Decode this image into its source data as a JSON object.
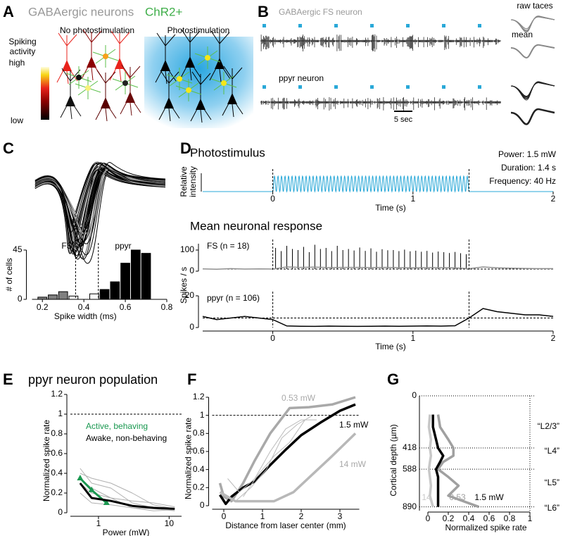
{
  "panel_labels": [
    "A",
    "B",
    "C",
    "D",
    "E",
    "F",
    "G"
  ],
  "panel_a": {
    "title": "GABAergic neurons",
    "title_accent": "ChR2+",
    "colorbar_title": [
      "Spiking",
      "activity"
    ],
    "colorbar_high": "high",
    "colorbar_low": "low",
    "left_label": "No photostimulation",
    "right_label": "Photostimulation"
  },
  "panel_b": {
    "fs_label": "GABAergic FS neuron",
    "ppyr_label": "ppyr neuron",
    "scale_label": "5 sec",
    "raw_label": "raw taces",
    "mean_label": "mean"
  },
  "chart_data": [
    {
      "type": "histogram",
      "xlabel": "Spike width (ms)",
      "ylabel": "# of cells",
      "bins": [
        0.175,
        0.225,
        0.275,
        0.325,
        0.375,
        0.425,
        0.475,
        0.525,
        0.575,
        0.625,
        0.675,
        0.725
      ],
      "values": [
        2,
        4,
        7,
        3,
        0,
        5,
        9,
        16,
        33,
        45,
        42
      ],
      "colors": [
        "#808080",
        "#808080",
        "#808080",
        "#ffffff",
        "#ffffff",
        "#ffffff",
        "#000000",
        "#000000",
        "#000000",
        "#000000",
        "#000000"
      ],
      "annotations": [
        "FS",
        "ppyr"
      ],
      "thresholds": [
        0.36,
        0.47
      ],
      "xlim": [
        0.15,
        0.8
      ],
      "xticks": [
        0.2,
        0.4,
        0.6,
        0.8
      ],
      "ylim": [
        0,
        45
      ],
      "yticks": [
        0,
        45
      ]
    },
    {
      "type": "stimulus",
      "title": "Photostimulus",
      "ylabel": [
        "Relative",
        "intensity"
      ],
      "xlabel": "Time (s)",
      "stim_window": [
        0,
        1.4
      ],
      "frequency_hz": 40,
      "info": [
        "Power: 1.5 mW",
        "Duration: 1.4 s",
        "Frequency: 40 Hz"
      ],
      "xlim": [
        -0.5,
        2
      ],
      "xticks": [
        0,
        1,
        2
      ],
      "color": "#29a8d8"
    },
    {
      "type": "trace",
      "title": "Mean neuronal response",
      "ylabel": "Spikes / s",
      "xlabel": "Time (s)",
      "stim_window": [
        0,
        1.4
      ],
      "xlim": [
        -0.5,
        2
      ],
      "xticks": [
        0,
        1,
        2
      ],
      "x": [
        -0.5,
        -0.4,
        -0.3,
        -0.2,
        -0.1,
        0,
        0.1,
        0.2,
        0.3,
        0.4,
        0.5,
        0.6,
        0.7,
        0.8,
        0.9,
        1,
        1.1,
        1.2,
        1.3,
        1.4,
        1.5,
        1.6,
        1.7,
        1.8,
        1.9,
        2
      ],
      "panels": [
        {
          "label": "FS (n = 18)",
          "color": "#909090",
          "ylim": [
            0,
            130
          ],
          "yticks": [
            0,
            100
          ],
          "baseline": 10,
          "values": [
            11,
            9,
            12,
            10,
            11,
            10,
            20,
            18,
            19,
            17,
            18,
            18,
            17,
            18,
            17,
            16,
            17,
            17,
            16,
            12,
            20,
            16,
            14,
            13,
            12,
            12
          ],
          "peaks_x": [
            0.02,
            0.06,
            0.1,
            0.14,
            0.18,
            0.22,
            0.26,
            0.3,
            0.34,
            0.38,
            0.42,
            0.46,
            0.5,
            0.54,
            0.58,
            0.62,
            0.66,
            0.7,
            0.74,
            0.78,
            0.82,
            0.86,
            0.9,
            0.94,
            0.98,
            1.02,
            1.06,
            1.1,
            1.14,
            1.18,
            1.22,
            1.26,
            1.3,
            1.34,
            1.38
          ],
          "peaks": [
            110,
            95,
            120,
            105,
            100,
            115,
            90,
            125,
            105,
            110,
            95,
            120,
            100,
            105,
            98,
            112,
            96,
            108,
            92,
            104,
            99,
            100,
            95,
            102,
            94,
            97,
            92,
            96,
            88,
            93,
            90,
            86,
            91,
            85,
            80
          ]
        },
        {
          "label": "ppyr (n = 106)",
          "color": "#000000",
          "ylim": [
            0,
            20
          ],
          "yticks": [
            0,
            20
          ],
          "baseline": 6,
          "values": [
            7,
            5,
            6,
            7,
            6,
            5,
            1,
            0.8,
            0.7,
            0.9,
            0.8,
            0.7,
            0.8,
            0.9,
            0.8,
            0.9,
            1,
            0.9,
            1.1,
            6,
            12,
            10,
            9,
            8,
            8,
            7
          ]
        }
      ]
    },
    {
      "type": "line",
      "title": "ppyr neuron population",
      "xlabel": "Power (mW)",
      "ylabel": "Normalized spike rate",
      "xscale": "log",
      "xlim": [
        0.4,
        15
      ],
      "xticks": [
        1,
        10
      ],
      "ylim": [
        0,
        1.2
      ],
      "yticks": [
        0,
        0.2,
        0.4,
        0.6,
        0.8,
        1,
        1.2
      ],
      "reference_line": 1,
      "series": [
        {
          "color": "#b0b0b0",
          "x": [
            0.55,
            0.8,
            1.5,
            3,
            6,
            12
          ],
          "values": [
            0.45,
            0.3,
            0.25,
            0.1,
            0.05,
            0.03
          ]
        },
        {
          "color": "#b0b0b0",
          "x": [
            0.55,
            0.8,
            1.5,
            3,
            6,
            12
          ],
          "values": [
            0.4,
            0.35,
            0.3,
            0.2,
            0.08,
            0.04
          ]
        },
        {
          "color": "#b0b0b0",
          "x": [
            0.55,
            0.8,
            1.5,
            3,
            6,
            12
          ],
          "values": [
            0.2,
            0.1,
            0.08,
            0.05,
            0.02,
            0.03
          ]
        },
        {
          "color": "#b0b0b0",
          "x": [
            0.55,
            0.8,
            1.5,
            3,
            6,
            12
          ],
          "values": [
            0.3,
            0.2,
            0.15,
            0.12,
            0.1,
            0.06
          ]
        },
        {
          "color": "#b0b0b0",
          "x": [
            0.55,
            0.8,
            1.5,
            3,
            6,
            12
          ],
          "values": [
            0.35,
            0.25,
            0.15,
            0.05,
            0.04,
            0.02
          ]
        },
        {
          "name": "Active, behaving",
          "color": "#1a9850",
          "markers": "triangle",
          "x": [
            0.55,
            0.8,
            1.3
          ],
          "values": [
            0.35,
            0.23,
            0.1
          ]
        },
        {
          "name": "Awake, non-behaving",
          "color": "#000000",
          "x": [
            0.55,
            0.8,
            1.5,
            3,
            6,
            12
          ],
          "values": [
            0.3,
            0.15,
            0.12,
            0.07,
            0.05,
            0.04
          ]
        }
      ]
    },
    {
      "type": "line",
      "xlabel": "Distance from laser center (mm)",
      "ylabel": "Normalized spike rate",
      "xlim": [
        -0.3,
        3.5
      ],
      "xticks": [
        0,
        1,
        2,
        3
      ],
      "ylim": [
        0,
        1.2
      ],
      "yticks": [
        0,
        0.2,
        0.4,
        0.6,
        0.8,
        1,
        1.2
      ],
      "reference_line": 1,
      "series": [
        {
          "name": "0.53 mW",
          "color": "#a9a9a9",
          "x": [
            -0.1,
            0,
            0.2,
            0.5,
            0.8,
            1.2,
            1.7,
            2.2,
            2.8,
            3.4
          ],
          "values": [
            0.25,
            0.1,
            0.05,
            0.25,
            0.5,
            0.8,
            1.08,
            1.09,
            1.12,
            1.2
          ]
        },
        {
          "name": "1.5 mW",
          "color": "#000000",
          "x": [
            -0.1,
            0.05,
            0.2,
            0.5,
            0.8,
            1.2,
            1.6,
            2,
            2.5,
            3,
            3.4
          ],
          "values": [
            0.12,
            0.02,
            0.1,
            0.2,
            0.27,
            0.45,
            0.62,
            0.78,
            0.92,
            1.05,
            1.12
          ]
        },
        {
          "name": "14 mW",
          "color": "#b8b8b8",
          "x": [
            -0.1,
            0.3,
            0.8,
            1.3,
            1.8,
            2.3,
            2.8,
            3.4
          ],
          "values": [
            0.15,
            0.05,
            0.05,
            0.05,
            0.15,
            0.35,
            0.55,
            0.8
          ]
        },
        {
          "color": "#bbbbbb",
          "x": [
            0.1,
            0.4,
            0.8,
            1.2,
            1.6,
            2,
            2.4
          ],
          "values": [
            0.3,
            0.15,
            0.3,
            0.6,
            0.85,
            0.95,
            0.95
          ]
        },
        {
          "color": "#bbbbbb",
          "x": [
            0.3,
            0.7,
            1.1,
            1.5,
            1.9,
            2.3
          ],
          "values": [
            0.05,
            0.2,
            0.4,
            0.75,
            0.9,
            1
          ]
        },
        {
          "color": "#bbbbbb",
          "x": [
            0.5,
            0.9,
            1.3,
            1.7,
            2.1
          ],
          "values": [
            0.1,
            0.35,
            0.55,
            0.7,
            0.95
          ]
        }
      ]
    },
    {
      "type": "profile",
      "xlabel": "Normalized spike rate",
      "ylabel": "Cortical depth (µm)",
      "xlim": [
        0,
        1
      ],
      "xticks": [
        0,
        0.2,
        0.4,
        0.6,
        0.8,
        1
      ],
      "ylim": [
        0,
        920
      ],
      "yticks": [
        0,
        418,
        588,
        890
      ],
      "reference_line": 1,
      "layers": [
        "“L2/3”",
        "“L4”",
        "“L5”",
        "“L6”"
      ],
      "series": [
        {
          "name": "14",
          "color": "#c8c8c8",
          "depth": [
            150,
            250,
            350,
            418,
            480,
            530,
            588,
            650,
            720,
            800,
            890
          ],
          "values": [
            0.02,
            0.01,
            0.03,
            0.02,
            0.03,
            0.02,
            0.01,
            0.02,
            0.03,
            0.02,
            0.05
          ]
        },
        {
          "name": "0.53",
          "color": "#a0a0a0",
          "depth": [
            150,
            250,
            350,
            418,
            480,
            530,
            588,
            650,
            720,
            800,
            890
          ],
          "values": [
            0.1,
            0.12,
            0.2,
            0.25,
            0.25,
            0.15,
            0.1,
            0.2,
            0.3,
            0.2,
            0.5
          ]
        },
        {
          "name": "1.5 mW",
          "color": "#000000",
          "depth": [
            150,
            250,
            350,
            418,
            480,
            530,
            588,
            650,
            720,
            800,
            890
          ],
          "values": [
            0.05,
            0.05,
            0.08,
            0.1,
            0.15,
            0.12,
            0.08,
            0.1,
            0.1,
            0.1,
            0.1
          ]
        }
      ]
    }
  ]
}
